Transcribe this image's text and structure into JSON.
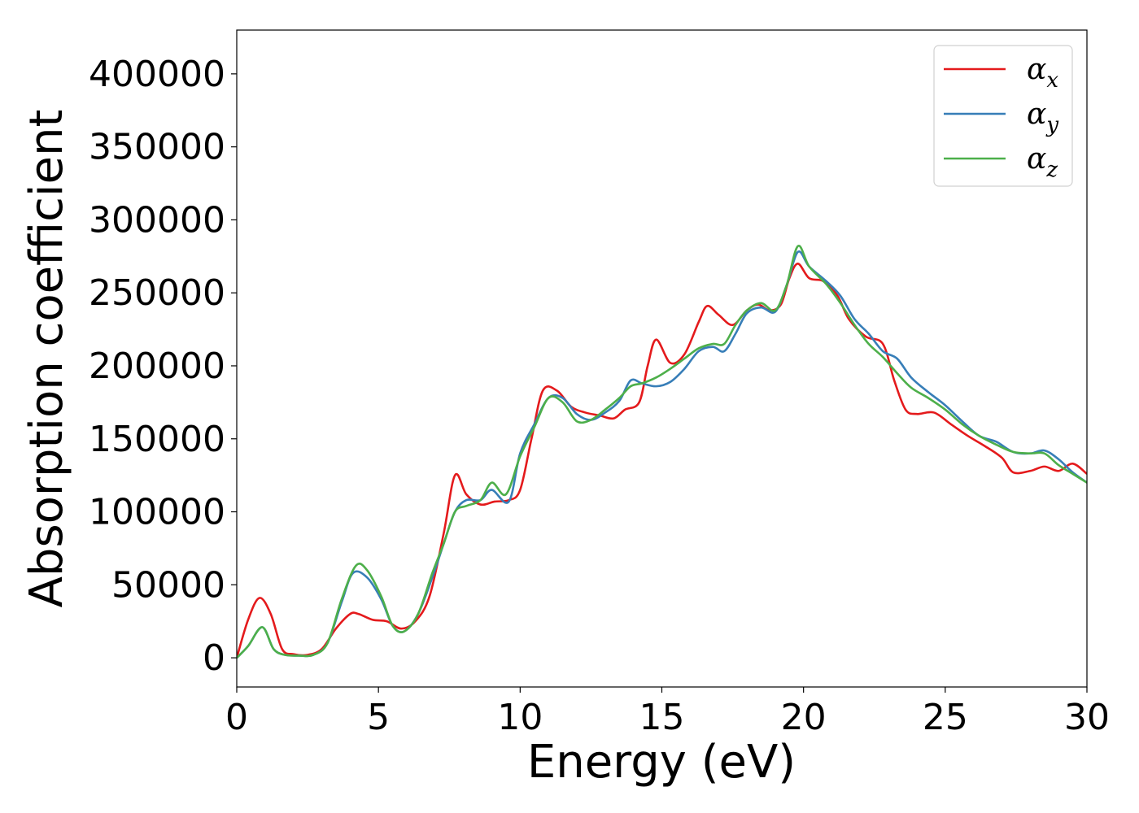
{
  "chart_data": {
    "type": "line",
    "title": "",
    "xlabel": "Energy (eV)",
    "ylabel": "Absorption coefficient",
    "xlim": [
      0,
      30
    ],
    "ylim": [
      -20000,
      430000
    ],
    "xticks": [
      0,
      5,
      10,
      15,
      20,
      25,
      30
    ],
    "yticks": [
      0,
      50000,
      100000,
      150000,
      200000,
      250000,
      300000,
      350000,
      400000
    ],
    "grid": false,
    "legend": "top-right",
    "series": [
      {
        "name": "α_x",
        "label_main": "α",
        "label_sub": "x",
        "color": "#e41a1c",
        "x": [
          0,
          0.4,
          0.8,
          1.2,
          1.6,
          2.0,
          2.5,
          3.0,
          3.5,
          4.0,
          4.3,
          4.8,
          5.3,
          5.8,
          6.3,
          6.8,
          7.3,
          7.7,
          8.1,
          8.6,
          9.1,
          9.6,
          10.0,
          10.4,
          10.8,
          11.3,
          11.8,
          12.3,
          12.8,
          13.3,
          13.7,
          14.2,
          14.5,
          14.8,
          15.3,
          15.8,
          16.3,
          16.6,
          17.0,
          17.5,
          18.0,
          18.4,
          18.8,
          19.2,
          19.5,
          19.8,
          20.2,
          20.7,
          21.2,
          21.6,
          22.2,
          22.8,
          23.2,
          23.6,
          24.0,
          24.6,
          25.2,
          25.8,
          26.4,
          27.0,
          27.4,
          28.0,
          28.5,
          29.0,
          29.5,
          30.0
        ],
        "y": [
          0,
          26000,
          41000,
          30000,
          6000,
          2500,
          2000,
          6000,
          20000,
          30000,
          30000,
          26000,
          25000,
          20000,
          25000,
          42000,
          85000,
          125000,
          112000,
          105000,
          107000,
          108000,
          115000,
          150000,
          183000,
          183000,
          172000,
          168000,
          166000,
          164000,
          170000,
          175000,
          200000,
          218000,
          202000,
          208000,
          230000,
          241000,
          235000,
          228000,
          238000,
          242000,
          238000,
          242000,
          260000,
          270000,
          260000,
          258000,
          248000,
          232000,
          220000,
          215000,
          190000,
          170000,
          167000,
          168000,
          160000,
          152000,
          145000,
          137000,
          127000,
          128000,
          131000,
          128000,
          133000,
          126000
        ]
      },
      {
        "name": "α_y",
        "label_main": "α",
        "label_sub": "y",
        "color": "#377eb8",
        "x": [
          0,
          0.4,
          0.9,
          1.3,
          1.7,
          2.2,
          2.7,
          3.2,
          3.7,
          4.1,
          4.6,
          5.1,
          5.5,
          5.9,
          6.4,
          6.9,
          7.3,
          7.7,
          8.1,
          8.6,
          9.0,
          9.6,
          10.0,
          10.5,
          11.0,
          11.5,
          12.0,
          12.5,
          13.0,
          13.5,
          13.9,
          14.3,
          14.8,
          15.3,
          15.8,
          16.3,
          16.8,
          17.2,
          17.6,
          18.0,
          18.5,
          19.0,
          19.4,
          19.8,
          20.2,
          20.8,
          21.3,
          21.8,
          22.3,
          22.8,
          23.3,
          23.8,
          24.4,
          25.0,
          25.6,
          26.2,
          26.8,
          27.4,
          28.0,
          28.5,
          29.0,
          29.5,
          30.0
        ],
        "y": [
          0,
          8000,
          21000,
          6000,
          2000,
          1500,
          2000,
          10000,
          38000,
          58000,
          55000,
          40000,
          22000,
          18000,
          30000,
          55000,
          78000,
          100000,
          108000,
          108000,
          115000,
          107000,
          140000,
          160000,
          178000,
          178000,
          167000,
          163000,
          168000,
          176000,
          190000,
          188000,
          186000,
          189000,
          198000,
          210000,
          213000,
          210000,
          222000,
          236000,
          240000,
          237000,
          255000,
          278000,
          268000,
          258000,
          248000,
          232000,
          222000,
          210000,
          205000,
          192000,
          182000,
          173000,
          162000,
          152000,
          148000,
          141000,
          140000,
          142000,
          136000,
          127000,
          120000
        ]
      },
      {
        "name": "α_z",
        "label_main": "α",
        "label_sub": "z",
        "color": "#4daf4a",
        "x": [
          0,
          0.4,
          0.9,
          1.3,
          1.7,
          2.2,
          2.7,
          3.2,
          3.7,
          4.2,
          4.6,
          5.1,
          5.5,
          5.9,
          6.4,
          6.9,
          7.3,
          7.7,
          8.1,
          8.6,
          9.0,
          9.5,
          10.0,
          10.5,
          11.0,
          11.5,
          12.0,
          12.5,
          13.0,
          13.5,
          13.9,
          14.3,
          14.8,
          15.3,
          15.8,
          16.3,
          16.8,
          17.2,
          17.6,
          18.0,
          18.5,
          19.0,
          19.4,
          19.8,
          20.2,
          20.8,
          21.3,
          21.8,
          22.3,
          22.8,
          23.3,
          23.8,
          24.4,
          25.0,
          25.6,
          26.2,
          26.8,
          27.4,
          28.0,
          28.5,
          29.0,
          29.5,
          30.0
        ],
        "y": [
          0,
          8000,
          21000,
          6000,
          2000,
          1500,
          2000,
          10000,
          40000,
          63000,
          60000,
          42000,
          22000,
          18000,
          30000,
          58000,
          78000,
          100000,
          104000,
          108000,
          120000,
          112000,
          138000,
          158000,
          178000,
          175000,
          162000,
          163000,
          170000,
          178000,
          186000,
          188000,
          192000,
          198000,
          205000,
          212000,
          215000,
          215000,
          228000,
          238000,
          243000,
          238000,
          255000,
          282000,
          268000,
          256000,
          243000,
          228000,
          215000,
          206000,
          195000,
          185000,
          178000,
          170000,
          160000,
          152000,
          146000,
          141000,
          140000,
          140000,
          132000,
          126000,
          120000
        ]
      }
    ]
  }
}
